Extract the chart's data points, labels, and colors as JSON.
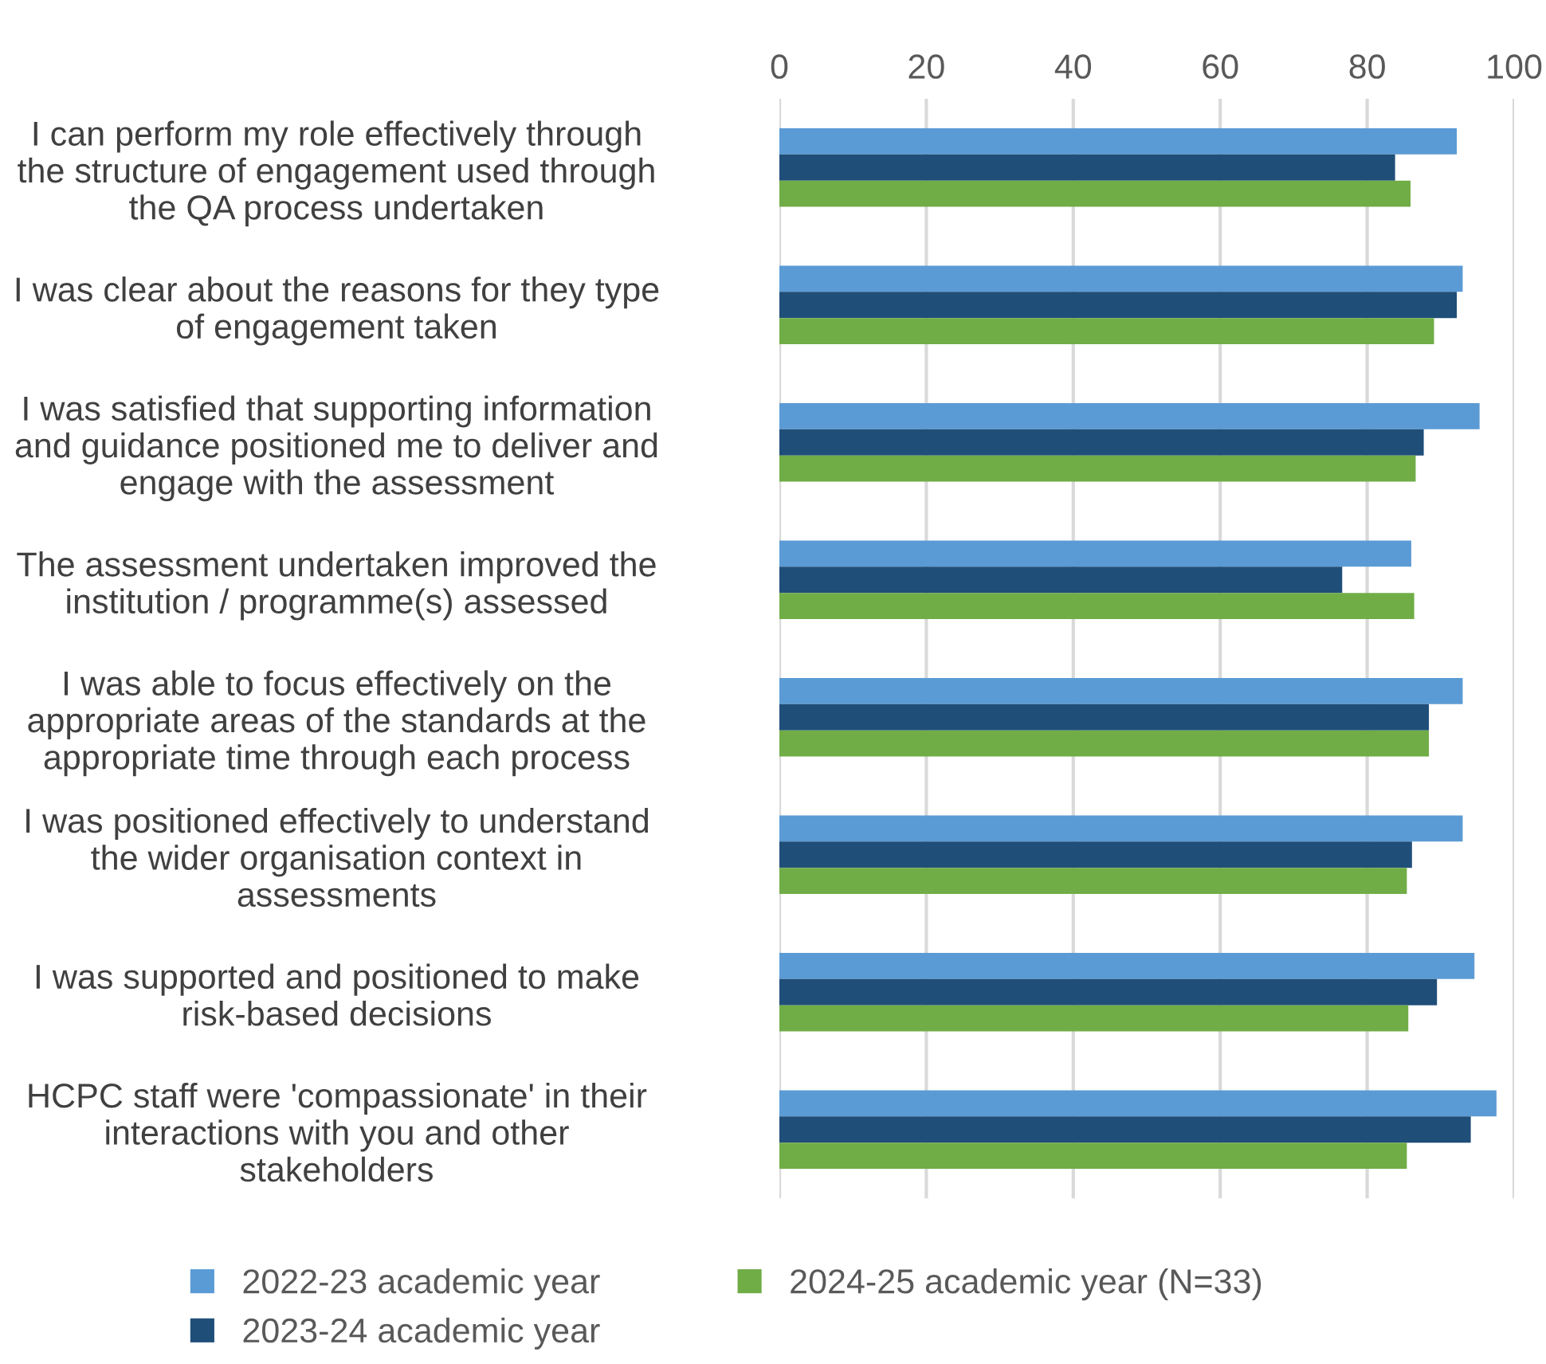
{
  "chart_data": {
    "type": "bar",
    "orientation": "horizontal",
    "categories": [
      "I can perform my role effectively through\nthe structure of engagement used through\nthe QA process undertaken",
      "I was clear about the reasons for they type\nof engagement taken",
      "I was satisfied that supporting information\nand guidance positioned me to deliver and\nengage with the assessment",
      "The assessment undertaken improved the\ninstitution / programme(s) assessed",
      "I was able to focus effectively on the\nappropriate areas of the standards at the\nappropriate time through each process",
      "I was positioned effectively to understand\nthe wider organisation context in\nassessments",
      "I was supported and positioned to make\nrisk-based decisions",
      "HCPC staff were 'compassionate' in their\ninteractions with you and other\nstakeholders"
    ],
    "series": [
      {
        "name": "2022-23 academic year",
        "color": "#5b9bd5",
        "values": [
          92.2,
          93.0,
          95.3,
          86.0,
          93.0,
          93.0,
          94.6,
          97.6
        ]
      },
      {
        "name": "2023-24 academic year",
        "color": "#1f4e79",
        "values": [
          83.8,
          92.2,
          87.7,
          76.6,
          88.4,
          86.1,
          89.5,
          94.1
        ]
      },
      {
        "name": "2024-25 academic year (N=33)",
        "color": "#70ad47",
        "values": [
          85.9,
          89.1,
          86.6,
          86.4,
          88.4,
          85.4,
          85.6,
          85.4
        ]
      }
    ],
    "xlim": [
      0,
      100
    ],
    "xticks": [
      0,
      20,
      40,
      60,
      80,
      100
    ],
    "grid": "x",
    "legend": "bottom"
  }
}
